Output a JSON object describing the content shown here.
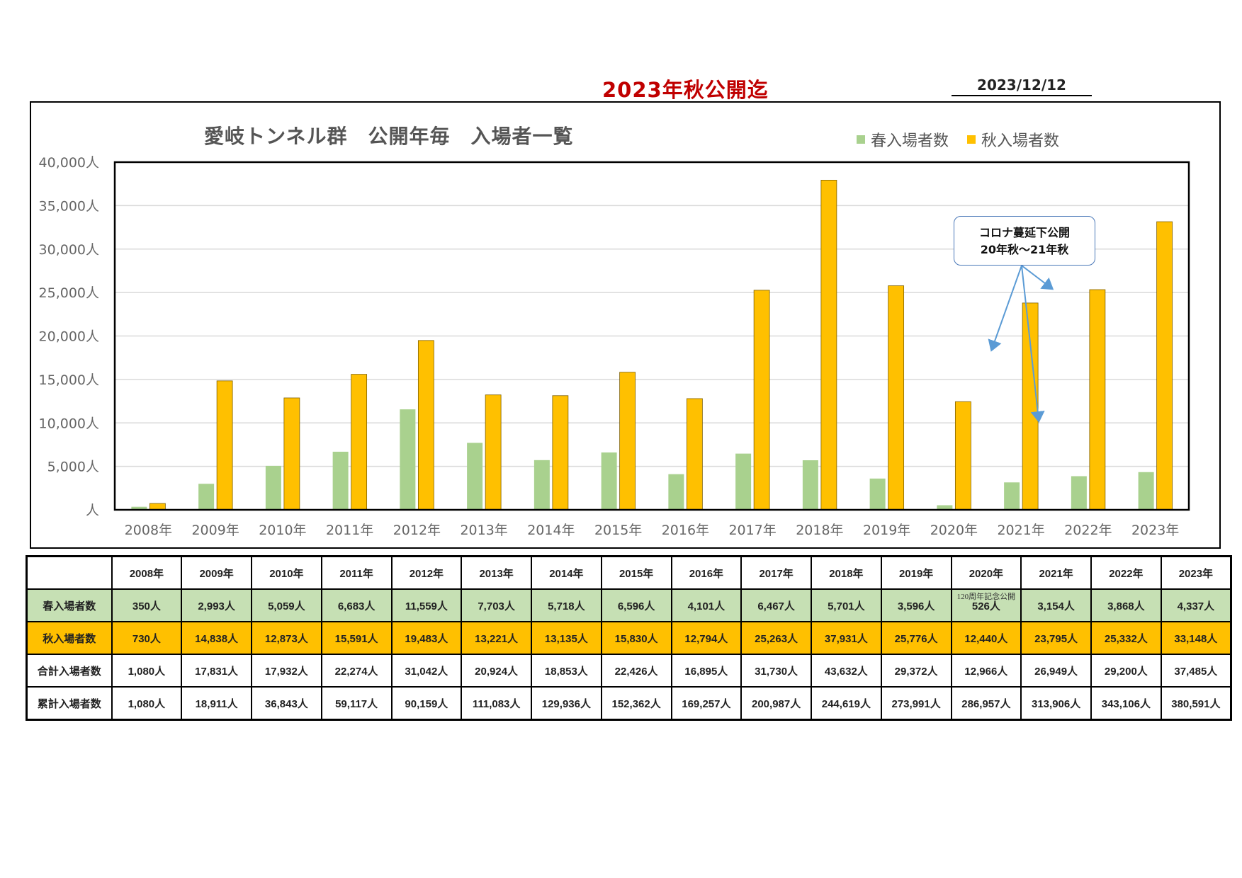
{
  "header": {
    "title": "2023年秋公開迄",
    "date": "2023/12/12"
  },
  "chart_data": {
    "type": "bar",
    "title": "愛岐トンネル群　公開年毎　入場者一覧",
    "categories": [
      "2008年",
      "2009年",
      "2010年",
      "2011年",
      "2012年",
      "2013年",
      "2014年",
      "2015年",
      "2016年",
      "2017年",
      "2018年",
      "2019年",
      "2020年",
      "2021年",
      "2022年",
      "2023年"
    ],
    "series": [
      {
        "name": "春入場者数",
        "color": "#a9d18e",
        "values": [
          350,
          2993,
          5059,
          6683,
          11559,
          7703,
          5718,
          6596,
          4101,
          6467,
          5701,
          3596,
          526,
          3154,
          3868,
          4337
        ]
      },
      {
        "name": "秋入場者数",
        "color": "#ffc000",
        "values": [
          730,
          14838,
          12873,
          15591,
          19483,
          13221,
          13135,
          15830,
          12794,
          25263,
          37931,
          25776,
          12440,
          23795,
          25332,
          33148
        ]
      }
    ],
    "ylim": [
      0,
      40000
    ],
    "yticks": [
      "人",
      "5,000人",
      "10,000人",
      "15,000人",
      "20,000人",
      "25,000人",
      "30,000人",
      "35,000人",
      "40,000人"
    ],
    "legend_position": "top-right",
    "annotation": {
      "line1": "コロナ蔓延下公開",
      "line2": "20年秋～21年秋"
    }
  },
  "table": {
    "headers": [
      "2008年",
      "2009年",
      "2010年",
      "2011年",
      "2012年",
      "2013年",
      "2014年",
      "2015年",
      "2016年",
      "2017年",
      "2018年",
      "2019年",
      "2020年",
      "2021年",
      "2022年",
      "2023年"
    ],
    "rows": [
      {
        "label": "春入場者数",
        "values": [
          "350人",
          "2,993人",
          "5,059人",
          "6,683人",
          "11,559人",
          "7,703人",
          "5,718人",
          "6,596人",
          "4,101人",
          "6,467人",
          "5,701人",
          "3,596人",
          "526人",
          "3,154人",
          "3,868人",
          "4,337人"
        ]
      },
      {
        "label": "秋入場者数",
        "values": [
          "730人",
          "14,838人",
          "12,873人",
          "15,591人",
          "19,483人",
          "13,221人",
          "13,135人",
          "15,830人",
          "12,794人",
          "25,263人",
          "37,931人",
          "25,776人",
          "12,440人",
          "23,795人",
          "25,332人",
          "33,148人"
        ]
      },
      {
        "label": "合計入場者数",
        "values": [
          "1,080人",
          "17,831人",
          "17,932人",
          "22,274人",
          "31,042人",
          "20,924人",
          "18,853人",
          "22,426人",
          "16,895人",
          "31,730人",
          "43,632人",
          "29,372人",
          "12,966人",
          "26,949人",
          "29,200人",
          "37,485人"
        ]
      },
      {
        "label": "累計入場者数",
        "values": [
          "1,080人",
          "18,911人",
          "36,843人",
          "59,117人",
          "90,159人",
          "111,083人",
          "129,936人",
          "152,362人",
          "169,257人",
          "200,987人",
          "244,619人",
          "273,991人",
          "286,957人",
          "313,906人",
          "343,106人",
          "380,591人"
        ]
      }
    ],
    "note_2020": "120周年記念公開"
  }
}
